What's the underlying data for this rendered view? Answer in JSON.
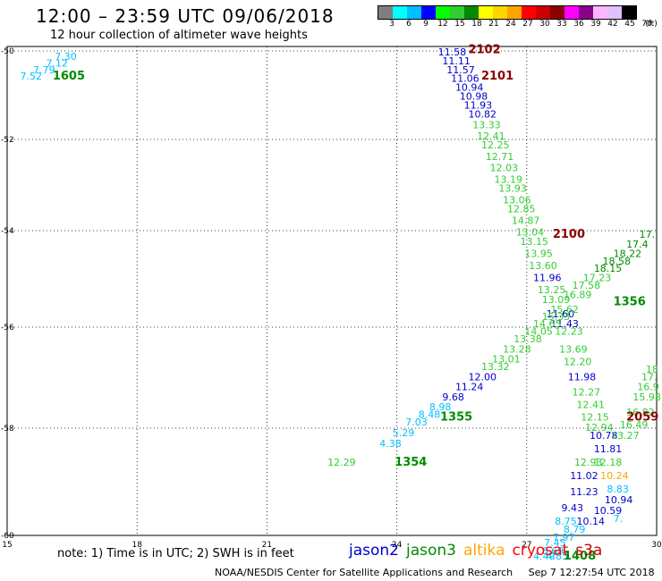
{
  "header": {
    "title": "12:00 – 23:59 UTC 09/06/2018",
    "subtitle": "12 hour collection of altimeter wave heights"
  },
  "colorbar": {
    "unit": "(ft)",
    "colors": [
      "#7f7f7f",
      "#00ffff",
      "#00bfff",
      "#0000ff",
      "#00ff00",
      "#32cd32",
      "#008b00",
      "#ffff00",
      "#ffd700",
      "#ffa500",
      "#ff0000",
      "#cd0000",
      "#8b0000",
      "#ff00ff",
      "#8b008b",
      "#ffb6ff",
      "#e0c0ff",
      "#000000"
    ],
    "labels": [
      "3",
      "6",
      "9",
      "12",
      "15",
      "18",
      "21",
      "24",
      "27",
      "30",
      "33",
      "36",
      "39",
      "42",
      "45",
      "70"
    ]
  },
  "map": {
    "x_ticks": [
      "15",
      "18",
      "21",
      "24",
      "27",
      "30"
    ],
    "y_ticks": [
      "-50",
      "-52",
      "-54",
      "-56",
      "-58",
      "-60"
    ]
  },
  "satellites": [
    {
      "name": "jason2",
      "color": "#0000cd"
    },
    {
      "name": "jason3",
      "color": "#008b00"
    },
    {
      "name": "altika",
      "color": "#ffa500"
    },
    {
      "name": "cryosat",
      "color": "#ff0000"
    },
    {
      "name": "s3a",
      "color": "#cd0000"
    }
  ],
  "observations": [
    {
      "lon": 16.1,
      "lat": -50.2,
      "label": "7.30",
      "color": "#00bfff"
    },
    {
      "lon": 15.9,
      "lat": -50.35,
      "label": "7.12",
      "color": "#00bfff"
    },
    {
      "lon": 15.6,
      "lat": -50.5,
      "label": "7.79",
      "color": "#00bfff"
    },
    {
      "lon": 15.3,
      "lat": -50.65,
      "label": "7.52",
      "color": "#00bfff"
    },
    {
      "lon": 24.95,
      "lat": -50.1,
      "label": "11.58",
      "color": "#0000cd"
    },
    {
      "lon": 25.05,
      "lat": -50.3,
      "label": "11.11",
      "color": "#0000cd"
    },
    {
      "lon": 25.15,
      "lat": -50.5,
      "label": "11.57",
      "color": "#0000cd"
    },
    {
      "lon": 25.25,
      "lat": -50.7,
      "label": "11.06",
      "color": "#0000cd"
    },
    {
      "lon": 25.35,
      "lat": -50.9,
      "label": "10.94",
      "color": "#0000cd"
    },
    {
      "lon": 25.45,
      "lat": -51.1,
      "label": "10.98",
      "color": "#0000cd"
    },
    {
      "lon": 25.55,
      "lat": -51.3,
      "label": "11.93",
      "color": "#0000cd"
    },
    {
      "lon": 25.65,
      "lat": -51.5,
      "label": "10.82",
      "color": "#0000cd"
    },
    {
      "lon": 25.75,
      "lat": -51.75,
      "label": "13.33",
      "color": "#32cd32"
    },
    {
      "lon": 25.85,
      "lat": -52.0,
      "label": "12.41",
      "color": "#32cd32"
    },
    {
      "lon": 25.95,
      "lat": -52.2,
      "label": "12.25",
      "color": "#32cd32"
    },
    {
      "lon": 26.05,
      "lat": -52.45,
      "label": "12.71",
      "color": "#32cd32"
    },
    {
      "lon": 26.15,
      "lat": -52.7,
      "label": "12.03",
      "color": "#32cd32"
    },
    {
      "lon": 26.25,
      "lat": -52.95,
      "label": "13.19",
      "color": "#32cd32"
    },
    {
      "lon": 26.35,
      "lat": -53.15,
      "label": "13.93",
      "color": "#32cd32"
    },
    {
      "lon": 26.45,
      "lat": -53.4,
      "label": "13.06",
      "color": "#32cd32"
    },
    {
      "lon": 26.55,
      "lat": -53.6,
      "label": "12.85",
      "color": "#32cd32"
    },
    {
      "lon": 26.65,
      "lat": -53.85,
      "label": "14.87",
      "color": "#32cd32"
    },
    {
      "lon": 26.75,
      "lat": -54.1,
      "label": "13.04",
      "color": "#32cd32"
    },
    {
      "lon": 26.85,
      "lat": -54.3,
      "label": "13.15",
      "color": "#32cd32"
    },
    {
      "lon": 26.95,
      "lat": -54.55,
      "label": "13.95",
      "color": "#32cd32"
    },
    {
      "lon": 27.05,
      "lat": -54.8,
      "label": "13.60",
      "color": "#32cd32"
    },
    {
      "lon": 27.15,
      "lat": -55.05,
      "label": "11.96",
      "color": "#0000cd"
    },
    {
      "lon": 27.25,
      "lat": -55.3,
      "label": "13.25",
      "color": "#32cd32"
    },
    {
      "lon": 27.35,
      "lat": -55.5,
      "label": "13.09",
      "color": "#32cd32"
    },
    {
      "lon": 27.45,
      "lat": -55.8,
      "label": "11.60",
      "color": "#0000cd"
    },
    {
      "lon": 27.55,
      "lat": -56.0,
      "label": "11.43",
      "color": "#0000cd"
    },
    {
      "lon": 27.65,
      "lat": -56.15,
      "label": "12.23",
      "color": "#32cd32"
    },
    {
      "lon": 27.75,
      "lat": -56.5,
      "label": "13.69",
      "color": "#32cd32"
    },
    {
      "lon": 27.85,
      "lat": -56.75,
      "label": "12.20",
      "color": "#32cd32"
    },
    {
      "lon": 27.95,
      "lat": -57.05,
      "label": "11.98",
      "color": "#0000cd"
    },
    {
      "lon": 28.05,
      "lat": -57.35,
      "label": "12.27",
      "color": "#32cd32"
    },
    {
      "lon": 28.15,
      "lat": -57.6,
      "label": "12.41",
      "color": "#32cd32"
    },
    {
      "lon": 28.25,
      "lat": -57.85,
      "label": "12.15",
      "color": "#32cd32"
    },
    {
      "lon": 28.35,
      "lat": -58.05,
      "label": "12.94",
      "color": "#32cd32"
    },
    {
      "lon": 28.45,
      "lat": -58.2,
      "label": "10.78",
      "color": "#0000cd"
    },
    {
      "lon": 28.55,
      "lat": -58.45,
      "label": "11.81",
      "color": "#0000cd"
    },
    {
      "lon": 28.1,
      "lat": -58.7,
      "label": "12.93",
      "color": "#32cd32"
    },
    {
      "lon": 28.55,
      "lat": -58.7,
      "label": "12.18",
      "color": "#32cd32"
    },
    {
      "lon": 28.0,
      "lat": -58.95,
      "label": "11.02",
      "color": "#0000cd"
    },
    {
      "lon": 28.7,
      "lat": -58.95,
      "label": "10.24",
      "color": "#ffa500"
    },
    {
      "lon": 28.85,
      "lat": -59.2,
      "label": "8.83",
      "color": "#00bfff"
    },
    {
      "lon": 28.0,
      "lat": -59.25,
      "label": "11.23",
      "color": "#0000cd"
    },
    {
      "lon": 28.8,
      "lat": -59.4,
      "label": "10.94",
      "color": "#0000cd"
    },
    {
      "lon": 27.8,
      "lat": -59.55,
      "label": "9.43",
      "color": "#0000cd"
    },
    {
      "lon": 28.55,
      "lat": -59.6,
      "label": "10.59",
      "color": "#0000cd"
    },
    {
      "lon": 28.15,
      "lat": -59.8,
      "label": "10.14",
      "color": "#0000cd"
    },
    {
      "lon": 29.0,
      "lat": -59.75,
      "label": "7.",
      "color": "#00bfff"
    },
    {
      "lon": 27.65,
      "lat": -59.8,
      "label": "8.75",
      "color": "#00bfff"
    },
    {
      "lon": 27.85,
      "lat": -59.95,
      "label": "8.79",
      "color": "#00bfff"
    },
    {
      "lon": 27.6,
      "lat": -60.1,
      "label": "7.97",
      "color": "#00bfff"
    },
    {
      "lon": 27.4,
      "lat": -60.2,
      "label": "7.45",
      "color": "#00bfff"
    },
    {
      "lon": 27.35,
      "lat": -60.35,
      "label": "6.69",
      "color": "#00bfff"
    },
    {
      "lon": 27.15,
      "lat": -60.45,
      "label": "4.49",
      "color": "#00bfff"
    },
    {
      "lon": 27.45,
      "lat": -60.45,
      "label": "4.85",
      "color": "#00bfff"
    },
    {
      "lon": 23.6,
      "lat": -58.35,
      "label": "4.38",
      "color": "#00bfff"
    },
    {
      "lon": 23.9,
      "lat": -58.15,
      "label": "5.29",
      "color": "#00bfff"
    },
    {
      "lon": 24.2,
      "lat": -57.95,
      "label": "7.03",
      "color": "#00bfff"
    },
    {
      "lon": 24.5,
      "lat": -57.8,
      "label": "8.48",
      "color": "#00bfff"
    },
    {
      "lon": 24.75,
      "lat": -57.65,
      "label": "8.98",
      "color": "#00bfff"
    },
    {
      "lon": 25.05,
      "lat": -57.45,
      "label": "9.68",
      "color": "#0000cd"
    },
    {
      "lon": 25.35,
      "lat": -57.25,
      "label": "11.24",
      "color": "#0000cd"
    },
    {
      "lon": 25.65,
      "lat": -57.05,
      "label": "12.00",
      "color": "#0000cd"
    },
    {
      "lon": 25.95,
      "lat": -56.85,
      "label": "13.32",
      "color": "#32cd32"
    },
    {
      "lon": 26.2,
      "lat": -56.7,
      "label": "13.01",
      "color": "#32cd32"
    },
    {
      "lon": 26.45,
      "lat": -56.5,
      "label": "13.28",
      "color": "#32cd32"
    },
    {
      "lon": 26.7,
      "lat": -56.3,
      "label": "13.38",
      "color": "#32cd32"
    },
    {
      "lon": 26.95,
      "lat": -56.15,
      "label": "14.05",
      "color": "#32cd32"
    },
    {
      "lon": 27.15,
      "lat": -56.0,
      "label": "14.65",
      "color": "#32cd32"
    },
    {
      "lon": 27.35,
      "lat": -55.85,
      "label": "15.33",
      "color": "#32cd32"
    },
    {
      "lon": 27.55,
      "lat": -55.7,
      "label": "15.62",
      "color": "#32cd32"
    },
    {
      "lon": 27.85,
      "lat": -55.4,
      "label": "16.89",
      "color": "#32cd32"
    },
    {
      "lon": 28.05,
      "lat": -55.2,
      "label": "17.58",
      "color": "#32cd32"
    },
    {
      "lon": 28.3,
      "lat": -55.05,
      "label": "17.23",
      "color": "#32cd32"
    },
    {
      "lon": 28.55,
      "lat": -54.85,
      "label": "18.15",
      "color": "#008b00"
    },
    {
      "lon": 28.75,
      "lat": -54.7,
      "label": "18.58",
      "color": "#008b00"
    },
    {
      "lon": 29.0,
      "lat": -54.55,
      "label": "18.22",
      "color": "#008b00"
    },
    {
      "lon": 29.3,
      "lat": -54.35,
      "label": "17.4",
      "color": "#008b00"
    },
    {
      "lon": 29.6,
      "lat": -54.15,
      "label": "17.",
      "color": "#008b00"
    },
    {
      "lon": 29.75,
      "lat": -56.9,
      "label": "18",
      "color": "#32cd32"
    },
    {
      "lon": 29.65,
      "lat": -57.05,
      "label": "17.",
      "color": "#32cd32"
    },
    {
      "lon": 29.55,
      "lat": -57.25,
      "label": "16.9",
      "color": "#32cd32"
    },
    {
      "lon": 29.45,
      "lat": -57.45,
      "label": "15.98",
      "color": "#32cd32"
    },
    {
      "lon": 29.3,
      "lat": -57.75,
      "label": "16.82",
      "color": "#32cd32"
    },
    {
      "lon": 29.15,
      "lat": -58.0,
      "label": "16.49",
      "color": "#32cd32"
    },
    {
      "lon": 28.95,
      "lat": -58.2,
      "label": "13.27",
      "color": "#32cd32"
    },
    {
      "lon": 22.4,
      "lat": -58.7,
      "label": "12.29",
      "color": "#32cd32"
    }
  ],
  "time_labels": [
    {
      "lon": 16.05,
      "lat": -50.65,
      "label": "1605",
      "color": "#008b00"
    },
    {
      "lon": 25.65,
      "lat": -50.05,
      "label": "2102",
      "color": "#8b0000"
    },
    {
      "lon": 25.95,
      "lat": -50.65,
      "label": "2101",
      "color": "#8b0000"
    },
    {
      "lon": 27.6,
      "lat": -54.15,
      "label": "2100",
      "color": "#8b0000"
    },
    {
      "lon": 29.0,
      "lat": -55.55,
      "label": "1356",
      "color": "#008b00"
    },
    {
      "lon": 25.0,
      "lat": -57.85,
      "label": "1355",
      "color": "#008b00"
    },
    {
      "lon": 23.95,
      "lat": -58.7,
      "label": "1354",
      "color": "#008b00"
    },
    {
      "lon": 29.3,
      "lat": -57.85,
      "label": "2059",
      "color": "#8b0000"
    },
    {
      "lon": 27.85,
      "lat": -60.45,
      "label": "1408",
      "color": "#008b00"
    }
  ],
  "footer": {
    "note": "note: 1) Time is in UTC; 2) SWH is in feet",
    "credit": "NOAA/NESDIS Center for Satellite Applications and Research",
    "timestamp": "Sep  7 12:27:54 UTC 2018"
  }
}
